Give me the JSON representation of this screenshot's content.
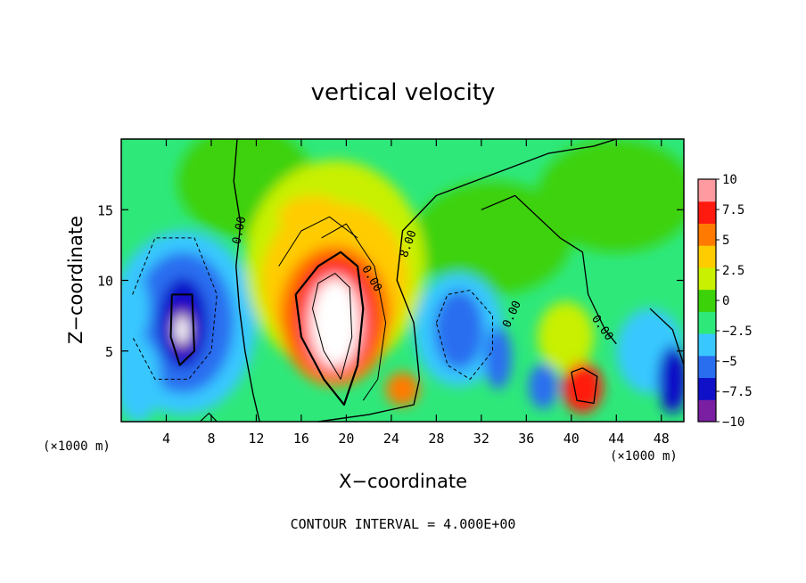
{
  "chart_data": {
    "type": "heatmap",
    "title": "vertical velocity",
    "xlabel": "X−coordinate",
    "ylabel": "Z−coordinate",
    "x_unit_label": "(×1000 m)",
    "x_unit_label_right": "(×1000 m)",
    "footnote": "CONTOUR INTERVAL = 4.000E+00",
    "xlim": [
      0,
      50
    ],
    "ylim": [
      0,
      20
    ],
    "x_ticks": [
      "4",
      "8",
      "12",
      "16",
      "20",
      "24",
      "28",
      "32",
      "36",
      "40",
      "44",
      "48"
    ],
    "x_tick_values": [
      4,
      8,
      12,
      16,
      20,
      24,
      28,
      32,
      36,
      40,
      44,
      48
    ],
    "y_ticks": [
      "5",
      "10",
      "15"
    ],
    "y_tick_values": [
      5,
      10,
      15
    ],
    "colorbar": {
      "min": -10,
      "max": 10,
      "ticks": [
        "10",
        "7.5",
        "5",
        "2.5",
        "0",
        "−2.5",
        "−5",
        "−7.5",
        "−10"
      ],
      "tick_values": [
        10,
        7.5,
        5,
        2.5,
        0,
        -2.5,
        -5,
        -7.5,
        -10
      ],
      "colors": [
        "#7a1fa2",
        "#1010c8",
        "#2a6ef0",
        "#38c8ff",
        "#2ee87a",
        "#3cd20a",
        "#c8f000",
        "#ffcc00",
        "#ff7a00",
        "#ff1a10",
        "#ff9aa0"
      ]
    },
    "contour_labels": [
      "0.00",
      "0.00",
      "8.00",
      "0.00",
      "0.00"
    ],
    "features": [
      {
        "kind": "updraft",
        "x": 19,
        "z": 7,
        "value": 10
      },
      {
        "kind": "downdraft",
        "x": 5.5,
        "z": 6.5,
        "value": -10
      },
      {
        "kind": "downdraft",
        "x": 30,
        "z": 6.5,
        "value": -6
      },
      {
        "kind": "downdraft",
        "x": 49,
        "z": 3,
        "value": -7
      },
      {
        "kind": "updraft",
        "x": 41,
        "z": 2.3,
        "value": 8
      },
      {
        "kind": "updraft",
        "x": 25,
        "z": 2.3,
        "value": 5
      }
    ]
  }
}
